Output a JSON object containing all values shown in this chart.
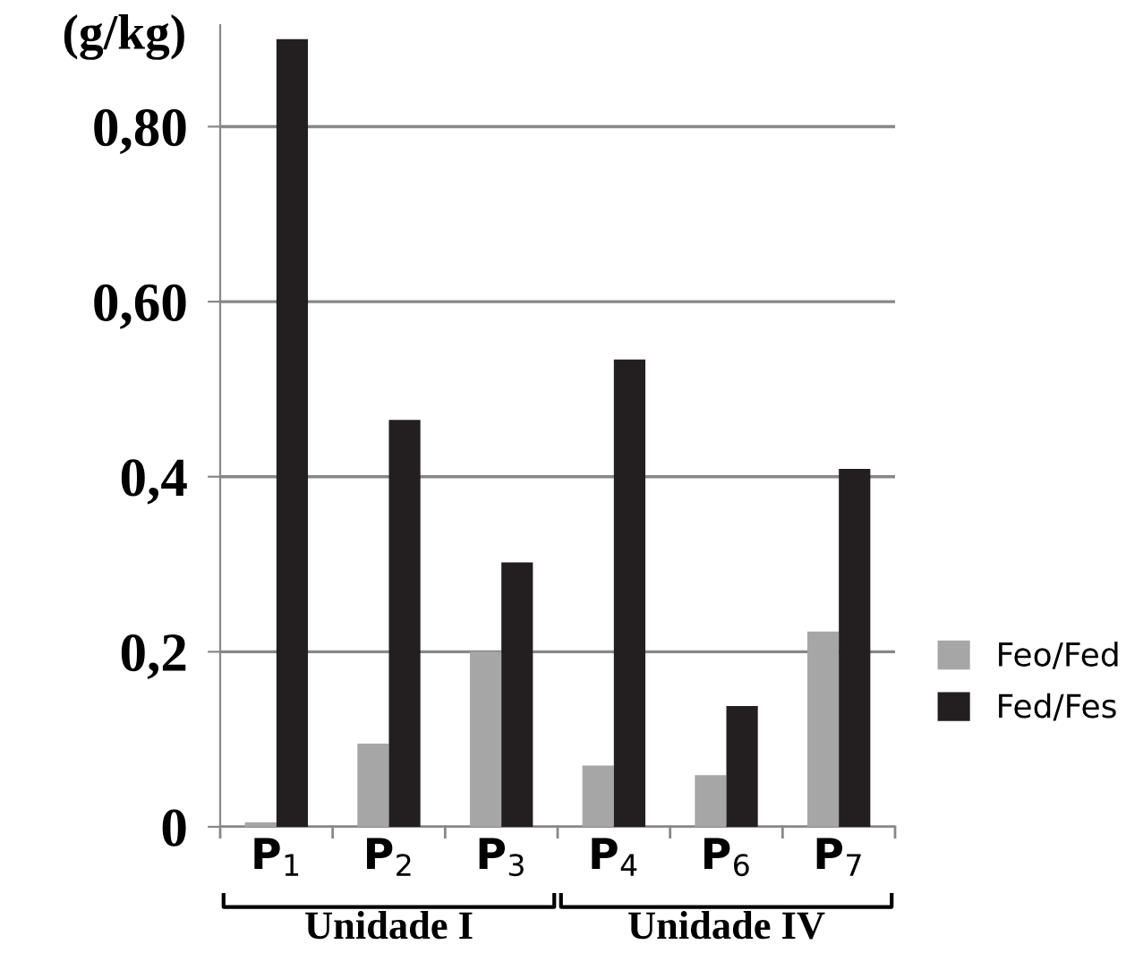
{
  "chart_data": {
    "type": "bar",
    "ylabel": "(g/kg)",
    "categories": [
      "P$_{1}$",
      "P$_{2}$",
      "P$_{3}$",
      "P$_{4}$",
      "P$_{6}$",
      "P$_{7}$"
    ],
    "series": [
      {
        "name": "Feo/Fed",
        "color": "#a6a6a6",
        "values": [
          0.005,
          0.095,
          0.2,
          0.07,
          0.059,
          0.223
        ]
      },
      {
        "name": "Fed/Fes",
        "color": "#231f20",
        "values": [
          0.9,
          0.465,
          0.302,
          0.534,
          0.138,
          0.409
        ]
      }
    ],
    "ylim": [
      0,
      0.916
    ],
    "yticks": [
      {
        "value": 0,
        "label": "0"
      },
      {
        "value": 0.2,
        "label": "0,2"
      },
      {
        "value": 0.4,
        "label": "0,4"
      },
      {
        "value": 0.6,
        "label": "0,60"
      },
      {
        "value": 0.8,
        "label": "0,80"
      }
    ],
    "grid": "y",
    "legend": "right",
    "annotations": [
      "Unidade I",
      "Unidade IV"
    ]
  }
}
